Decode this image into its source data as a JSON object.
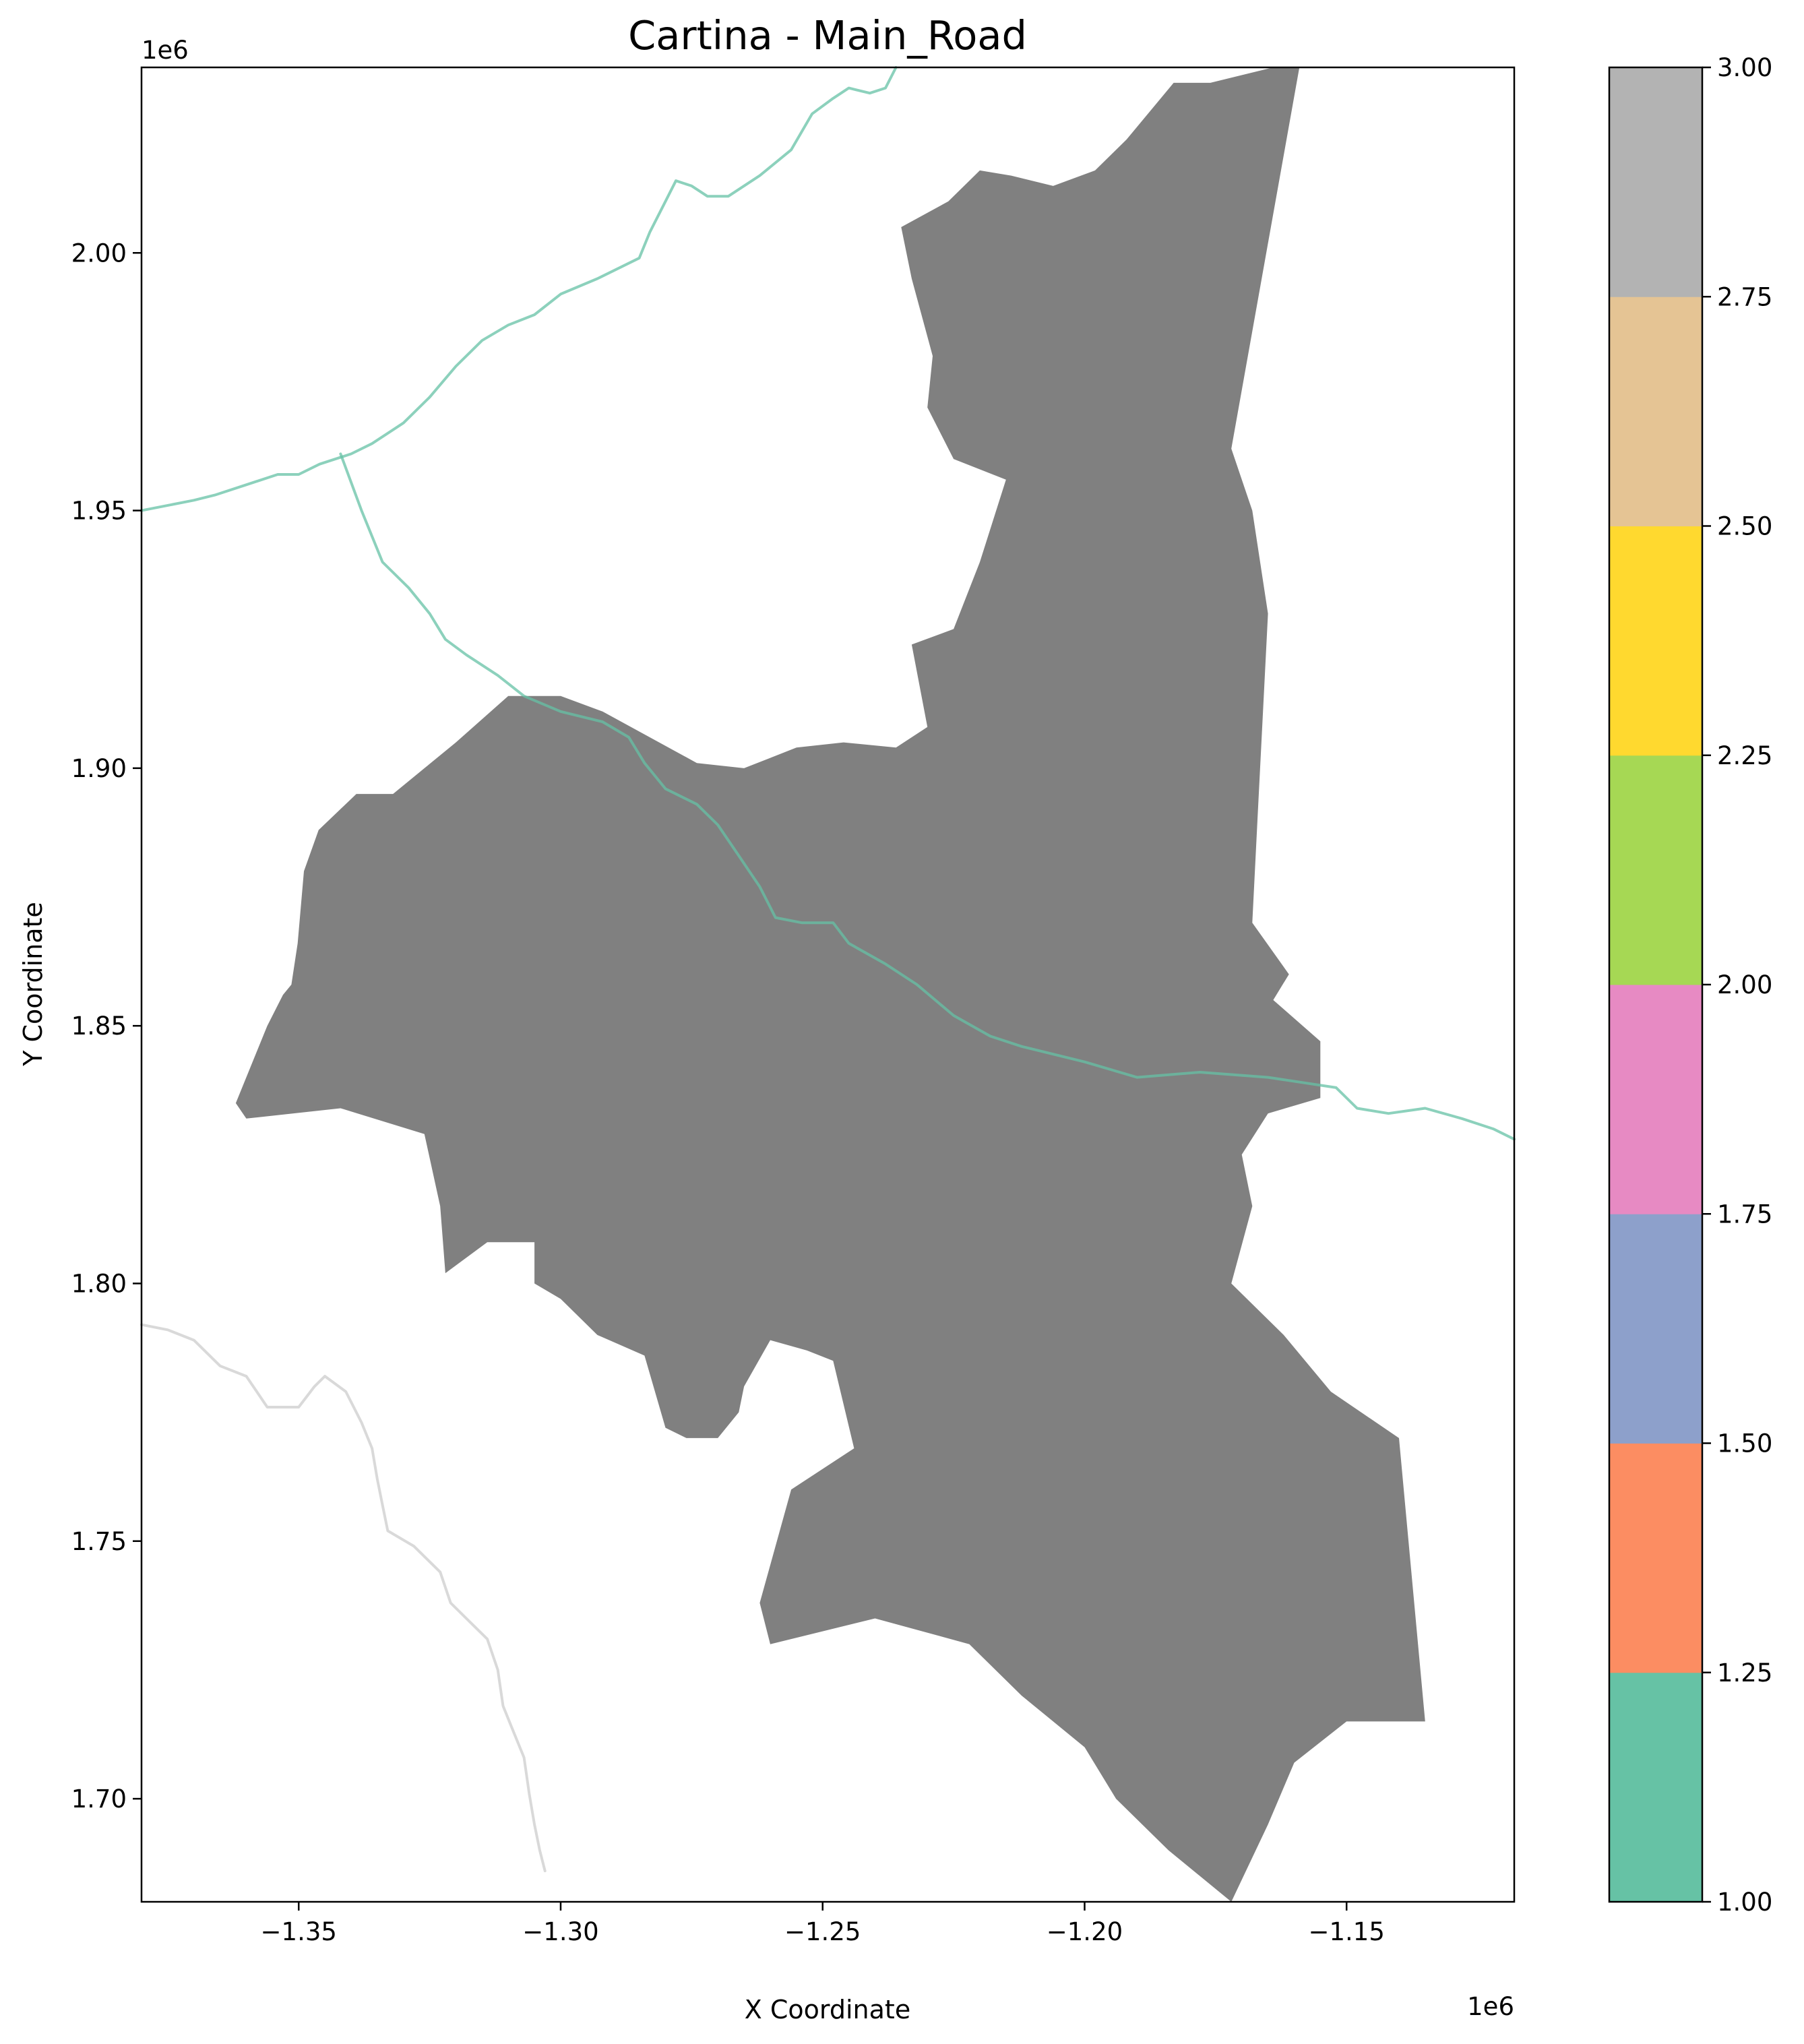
{
  "chart_data": {
    "type": "map",
    "title": "Cartina - Main_Road",
    "xlabel": "X Coordinate",
    "ylabel": "Y Coordinate",
    "x_offset_label": "1e6",
    "y_offset_label": "1e6",
    "xlim": [
      -1.38,
      -1.118
    ],
    "ylim": [
      1.68,
      2.036
    ],
    "x_ticks": [
      -1.35,
      -1.3,
      -1.25,
      -1.2,
      -1.15
    ],
    "x_tick_labels": [
      "−1.35",
      "−1.30",
      "−1.25",
      "−1.20",
      "−1.15"
    ],
    "y_ticks": [
      1.7,
      1.75,
      1.8,
      1.85,
      1.9,
      1.95,
      2.0
    ],
    "y_tick_labels": [
      "1.70",
      "1.75",
      "1.80",
      "1.85",
      "1.90",
      "1.95",
      "2.00"
    ],
    "grid": false,
    "region": {
      "color": "#808080",
      "outline": [
        [
          -1.3514,
          1.858
        ],
        [
          -1.3502,
          1.866
        ],
        [
          -1.349,
          1.88
        ],
        [
          -1.3462,
          1.888
        ],
        [
          -1.339,
          1.895
        ],
        [
          -1.332,
          1.895
        ],
        [
          -1.326,
          1.9
        ],
        [
          -1.32,
          1.905
        ],
        [
          -1.31,
          1.914
        ],
        [
          -1.3,
          1.914
        ],
        [
          -1.292,
          1.911
        ],
        [
          -1.283,
          1.906
        ],
        [
          -1.274,
          1.901
        ],
        [
          -1.265,
          1.9
        ],
        [
          -1.255,
          1.904
        ],
        [
          -1.246,
          1.905
        ],
        [
          -1.236,
          1.904
        ],
        [
          -1.23,
          1.908
        ],
        [
          -1.233,
          1.924
        ],
        [
          -1.225,
          1.927
        ],
        [
          -1.22,
          1.94
        ],
        [
          -1.215,
          1.956
        ],
        [
          -1.225,
          1.96
        ],
        [
          -1.23,
          1.97
        ],
        [
          -1.229,
          1.98
        ],
        [
          -1.233,
          1.995
        ],
        [
          -1.235,
          2.005
        ],
        [
          -1.226,
          2.01
        ],
        [
          -1.22,
          2.016
        ],
        [
          -1.214,
          2.015
        ],
        [
          -1.206,
          2.013
        ],
        [
          -1.198,
          2.016
        ],
        [
          -1.192,
          2.022
        ],
        [
          -1.183,
          2.033
        ],
        [
          -1.176,
          2.033
        ],
        [
          -1.164,
          2.036
        ],
        [
          -1.159,
          2.036
        ],
        [
          -1.172,
          1.962
        ],
        [
          -1.168,
          1.95
        ],
        [
          -1.165,
          1.93
        ],
        [
          -1.166,
          1.91
        ],
        [
          -1.167,
          1.89
        ],
        [
          -1.168,
          1.87
        ],
        [
          -1.161,
          1.86
        ],
        [
          -1.164,
          1.855
        ],
        [
          -1.155,
          1.847
        ],
        [
          -1.155,
          1.836
        ],
        [
          -1.165,
          1.833
        ],
        [
          -1.17,
          1.825
        ],
        [
          -1.168,
          1.815
        ],
        [
          -1.172,
          1.8
        ],
        [
          -1.162,
          1.79
        ],
        [
          -1.153,
          1.779
        ],
        [
          -1.14,
          1.77
        ],
        [
          -1.135,
          1.715
        ],
        [
          -1.15,
          1.715
        ],
        [
          -1.16,
          1.707
        ],
        [
          -1.165,
          1.695
        ],
        [
          -1.172,
          1.68
        ],
        [
          -1.184,
          1.69
        ],
        [
          -1.194,
          1.7
        ],
        [
          -1.2,
          1.71
        ],
        [
          -1.212,
          1.72
        ],
        [
          -1.222,
          1.73
        ],
        [
          -1.24,
          1.735
        ],
        [
          -1.26,
          1.73
        ],
        [
          -1.262,
          1.738
        ],
        [
          -1.256,
          1.76
        ],
        [
          -1.244,
          1.768
        ],
        [
          -1.248,
          1.785
        ],
        [
          -1.253,
          1.787
        ],
        [
          -1.26,
          1.789
        ],
        [
          -1.265,
          1.78
        ],
        [
          -1.266,
          1.775
        ],
        [
          -1.27,
          1.77
        ],
        [
          -1.276,
          1.77
        ],
        [
          -1.28,
          1.772
        ],
        [
          -1.284,
          1.786
        ],
        [
          -1.293,
          1.79
        ],
        [
          -1.3,
          1.797
        ],
        [
          -1.305,
          1.8
        ],
        [
          -1.305,
          1.808
        ],
        [
          -1.314,
          1.808
        ],
        [
          -1.322,
          1.802
        ],
        [
          -1.323,
          1.815
        ],
        [
          -1.326,
          1.829
        ],
        [
          -1.342,
          1.834
        ],
        [
          -1.36,
          1.832
        ],
        [
          -1.362,
          1.835
        ],
        [
          -1.356,
          1.85
        ],
        [
          -1.353,
          1.856
        ]
      ]
    },
    "roads": [
      {
        "name": "",
        "color": "#66c2a5",
        "points": [
          [
            -1.38,
            1.95
          ],
          [
            -1.37,
            1.952
          ],
          [
            -1.366,
            1.953
          ],
          [
            -1.36,
            1.955
          ],
          [
            -1.354,
            1.957
          ],
          [
            -1.35,
            1.957
          ],
          [
            -1.346,
            1.959
          ],
          [
            -1.34,
            1.961
          ],
          [
            -1.336,
            1.963
          ],
          [
            -1.33,
            1.967
          ],
          [
            -1.325,
            1.972
          ],
          [
            -1.32,
            1.978
          ],
          [
            -1.315,
            1.983
          ],
          [
            -1.31,
            1.986
          ],
          [
            -1.305,
            1.988
          ],
          [
            -1.3,
            1.992
          ],
          [
            -1.293,
            1.995
          ],
          [
            -1.285,
            1.999
          ],
          [
            -1.283,
            2.004
          ],
          [
            -1.28,
            2.01
          ],
          [
            -1.278,
            2.014
          ],
          [
            -1.275,
            2.013
          ],
          [
            -1.272,
            2.011
          ],
          [
            -1.268,
            2.011
          ],
          [
            -1.262,
            2.015
          ],
          [
            -1.256,
            2.02
          ],
          [
            -1.252,
            2.027
          ],
          [
            -1.248,
            2.03
          ],
          [
            -1.245,
            2.032
          ],
          [
            -1.241,
            2.031
          ],
          [
            -1.238,
            2.032
          ],
          [
            -1.236,
            2.036
          ]
        ]
      },
      {
        "name": "",
        "color": "#66c2a5",
        "points": [
          [
            -1.342,
            1.961
          ],
          [
            -1.338,
            1.95
          ],
          [
            -1.334,
            1.94
          ],
          [
            -1.329,
            1.935
          ],
          [
            -1.325,
            1.93
          ],
          [
            -1.322,
            1.925
          ],
          [
            -1.318,
            1.922
          ],
          [
            -1.312,
            1.918
          ],
          [
            -1.307,
            1.914
          ],
          [
            -1.3,
            1.911
          ],
          [
            -1.292,
            1.909
          ],
          [
            -1.287,
            1.906
          ],
          [
            -1.284,
            1.901
          ],
          [
            -1.28,
            1.896
          ],
          [
            -1.274,
            1.893
          ],
          [
            -1.27,
            1.889
          ],
          [
            -1.266,
            1.883
          ],
          [
            -1.262,
            1.877
          ],
          [
            -1.259,
            1.871
          ],
          [
            -1.254,
            1.87
          ],
          [
            -1.248,
            1.87
          ],
          [
            -1.245,
            1.866
          ],
          [
            -1.238,
            1.862
          ],
          [
            -1.232,
            1.858
          ],
          [
            -1.225,
            1.852
          ],
          [
            -1.218,
            1.848
          ],
          [
            -1.212,
            1.846
          ],
          [
            -1.2,
            1.843
          ],
          [
            -1.19,
            1.84
          ],
          [
            -1.178,
            1.841
          ],
          [
            -1.165,
            1.84
          ],
          [
            -1.152,
            1.838
          ],
          [
            -1.148,
            1.834
          ],
          [
            -1.142,
            1.833
          ],
          [
            -1.135,
            1.834
          ],
          [
            -1.128,
            1.832
          ],
          [
            -1.122,
            1.83
          ],
          [
            -1.118,
            1.828
          ]
        ]
      },
      {
        "name": "",
        "color": "#cccccc",
        "points": [
          [
            -1.38,
            1.792
          ],
          [
            -1.375,
            1.791
          ],
          [
            -1.37,
            1.789
          ],
          [
            -1.365,
            1.784
          ],
          [
            -1.36,
            1.782
          ],
          [
            -1.356,
            1.776
          ],
          [
            -1.354,
            1.776
          ],
          [
            -1.35,
            1.776
          ],
          [
            -1.347,
            1.78
          ],
          [
            -1.345,
            1.782
          ],
          [
            -1.341,
            1.779
          ],
          [
            -1.338,
            1.773
          ],
          [
            -1.336,
            1.768
          ],
          [
            -1.335,
            1.762
          ],
          [
            -1.334,
            1.757
          ],
          [
            -1.333,
            1.752
          ],
          [
            -1.328,
            1.749
          ],
          [
            -1.323,
            1.744
          ],
          [
            -1.321,
            1.738
          ],
          [
            -1.318,
            1.735
          ],
          [
            -1.314,
            1.731
          ],
          [
            -1.312,
            1.725
          ],
          [
            -1.311,
            1.718
          ],
          [
            -1.309,
            1.713
          ],
          [
            -1.307,
            1.708
          ],
          [
            -1.306,
            1.701
          ],
          [
            -1.305,
            1.695
          ],
          [
            -1.304,
            1.69
          ],
          [
            -1.303,
            1.686
          ]
        ]
      }
    ],
    "colorbar": {
      "range": [
        1.0,
        3.0
      ],
      "ticks": [
        1.0,
        1.25,
        1.5,
        1.75,
        2.0,
        2.25,
        2.5,
        2.75,
        3.0
      ],
      "tick_labels": [
        "1.00",
        "1.25",
        "1.50",
        "1.75",
        "2.00",
        "2.25",
        "2.50",
        "2.75",
        "3.00"
      ],
      "colors": [
        "#66c2a5",
        "#fc8d62",
        "#8da0cb",
        "#e78ac3",
        "#a6d854",
        "#ffd92f",
        "#e5c494",
        "#b3b3b3"
      ]
    }
  }
}
